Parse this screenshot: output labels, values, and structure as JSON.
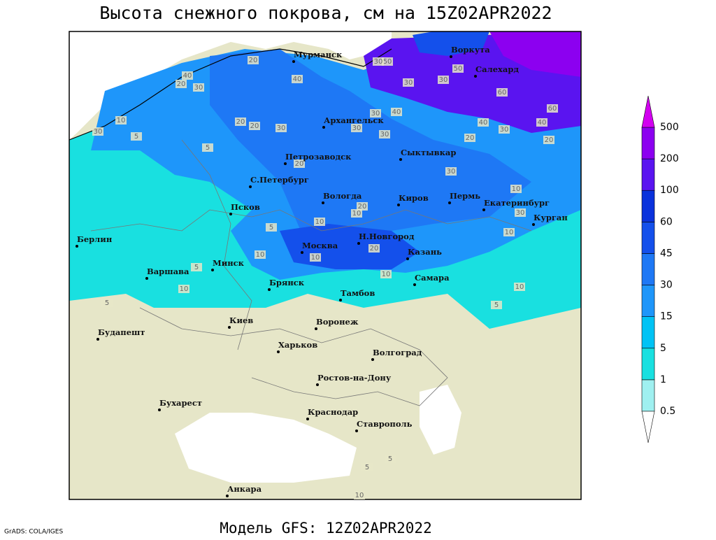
{
  "title": "Высота снежного покрова, см на 15Z02APR2022",
  "footer": "Модель GFS: 12Z02APR2022",
  "credit": "GrADS: COLA/IGES",
  "cities": [
    "Мурманск",
    "Архангельск",
    "Воркута",
    "Салехард",
    "Петрозаводск",
    "С.Петербург",
    "Сыктывкар",
    "Псков",
    "Вологда",
    "Киров",
    "Пермь",
    "Екатеринбург",
    "Курган",
    "Берлин",
    "Н.Новгород",
    "Москва",
    "Казань",
    "Минск",
    "Варшава",
    "Брянск",
    "Тамбов",
    "Самара",
    "Киев",
    "Воронеж",
    "Будапешт",
    "Харьков",
    "Волгоград",
    "Ростов-на-Дону",
    "Бухарест",
    "Краснодар",
    "Ставрополь",
    "Анкара"
  ],
  "legend": {
    "labels": [
      0.5,
      1,
      5,
      15,
      30,
      45,
      60,
      100,
      200,
      500
    ],
    "colors": [
      "#9ff0f0",
      "#19e0e0",
      "#00c3f5",
      "#1e96fa",
      "#1e78f5",
      "#1450eb",
      "#0a32dc",
      "#5a14f0",
      "#8c00f0"
    ],
    "below_color": "#ffffff",
    "above_color": "#d200f0"
  },
  "contour_labels": [
    20,
    40,
    20,
    30,
    40,
    10,
    30,
    5,
    20,
    20,
    30,
    5,
    20,
    50,
    30,
    30,
    50,
    60,
    60,
    40,
    40,
    30,
    20,
    20,
    30,
    10,
    20,
    10,
    10,
    5,
    20,
    10,
    10,
    5,
    10,
    5,
    10,
    5,
    10,
    10,
    30,
    5,
    5,
    10,
    30,
    40,
    30,
    30,
    30
  ]
}
